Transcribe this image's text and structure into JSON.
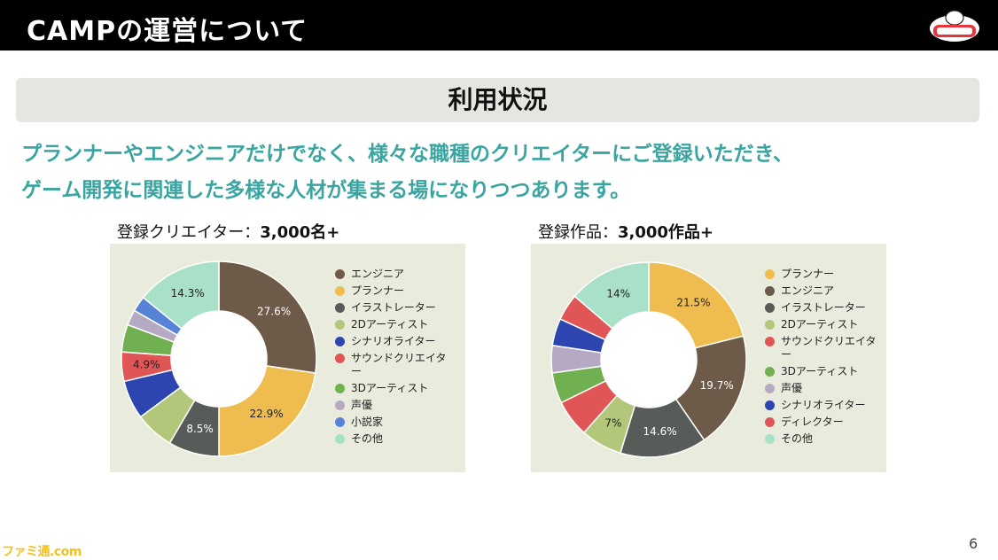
{
  "header": {
    "title": "CAMPの運営について"
  },
  "section": {
    "title": "利用状況"
  },
  "lead": {
    "line1": "プランナーやエンジニアだけでなく、様々な職種のクリエイターにご登録いただき、",
    "line2": "ゲーム開発に関連した多様な人材が集まる場になりつつあります。"
  },
  "stats": {
    "left": {
      "label": "登録クリエイター：",
      "value": "3,000名+"
    },
    "right": {
      "label": "登録作品：",
      "value": "3,000作品+"
    }
  },
  "page_number": "6",
  "watermark": "ファミ通.com",
  "chart_data": [
    {
      "type": "pie",
      "donut": true,
      "slices": [
        {
          "label": "エンジニア",
          "value": 27.6,
          "color": "#6e5a48",
          "display": "27.6%"
        },
        {
          "label": "プランナー",
          "value": 22.9,
          "color": "#efbd4f",
          "display": "22.9%"
        },
        {
          "label": "イラストレーター",
          "value": 8.5,
          "color": "#575c59",
          "display": "8.5%"
        },
        {
          "label": "2Dアーティスト",
          "value": 6.5,
          "color": "#b3c77a",
          "display": ""
        },
        {
          "label": "シナリオライター",
          "value": 6.5,
          "color": "#2c45b0",
          "display": ""
        },
        {
          "label": "サウンドクリエイター",
          "value": 4.9,
          "color": "#e05555",
          "display": "4.9%"
        },
        {
          "label": "3Dアーティスト",
          "value": 4.6,
          "color": "#70b050",
          "display": ""
        },
        {
          "label": "声優",
          "value": 2.6,
          "color": "#b6a9c3",
          "display": ""
        },
        {
          "label": "小説家",
          "value": 2.6,
          "color": "#5783d6",
          "display": ""
        },
        {
          "label": "その他",
          "value": 14.3,
          "color": "#a9e0c8",
          "display": "14.3%"
        }
      ],
      "legend_position": "right"
    },
    {
      "type": "pie",
      "donut": true,
      "slices": [
        {
          "label": "プランナー",
          "value": 21.5,
          "color": "#efbd4f",
          "display": "21.5%"
        },
        {
          "label": "エンジニア",
          "value": 19.7,
          "color": "#6e5a48",
          "display": "19.7%"
        },
        {
          "label": "イラストレーター",
          "value": 14.6,
          "color": "#575c59",
          "display": "14.6%"
        },
        {
          "label": "2Dアーティスト",
          "value": 7,
          "color": "#b3c77a",
          "display": "7%"
        },
        {
          "label": "サウンドクリエイター",
          "value": 6.3,
          "color": "#e05555",
          "display": ""
        },
        {
          "label": "3Dアーティスト",
          "value": 5.2,
          "color": "#70b050",
          "display": ""
        },
        {
          "label": "声優",
          "value": 4.6,
          "color": "#b6a9c3",
          "display": ""
        },
        {
          "label": "シナリオライター",
          "value": 4.6,
          "color": "#2c45b0",
          "display": ""
        },
        {
          "label": "ディレクター",
          "value": 4.5,
          "color": "#e05555",
          "display": ""
        },
        {
          "label": "その他",
          "value": 14,
          "color": "#a9e0c8",
          "display": "14%"
        }
      ],
      "legend_position": "right"
    }
  ]
}
